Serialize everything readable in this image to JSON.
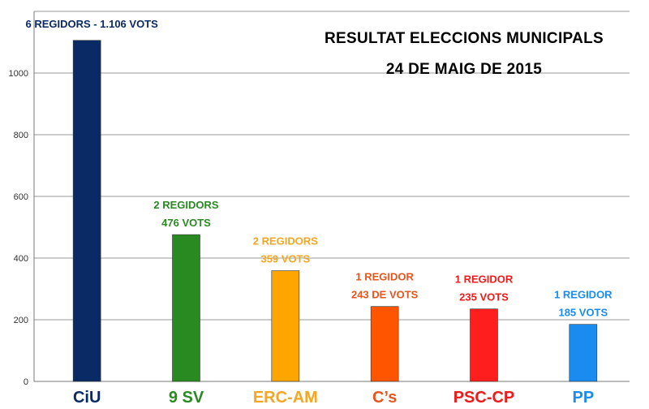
{
  "chart_data": {
    "type": "bar",
    "title": [
      "RESULTAT ELECCIONS MUNICIPALS",
      "24 DE MAIG DE 2015"
    ],
    "categories": [
      "CiU",
      "9 SV",
      "ERC-AM",
      "C’s",
      "PSC-CP",
      "PP"
    ],
    "values": [
      1106,
      476,
      359,
      243,
      235,
      185
    ],
    "annotations": [
      [
        "6 REGIDORS - 1.106 VOTS"
      ],
      [
        "2 REGIDORS",
        "476 VOTS"
      ],
      [
        "2 REGIDORS",
        "359 VOTS"
      ],
      [
        "1 REGIDOR",
        "243 DE VOTS"
      ],
      [
        "1 REGIDOR",
        "235 VOTS"
      ],
      [
        "1 REGIDOR",
        "185 VOTS"
      ]
    ],
    "colors": [
      "#0a2a66",
      "#2a8a22",
      "#ffa500",
      "#ff5500",
      "#ff1e1e",
      "#1a8cf0"
    ],
    "label_colors": [
      "#0a2a66",
      "#2a8a22",
      "#f5a623",
      "#e8541e",
      "#ee1b1b",
      "#1a8cf0"
    ],
    "ylim": [
      0,
      1200
    ],
    "yticks": [
      0,
      200,
      400,
      600,
      800,
      1000
    ],
    "grid": true,
    "legend": "none"
  }
}
